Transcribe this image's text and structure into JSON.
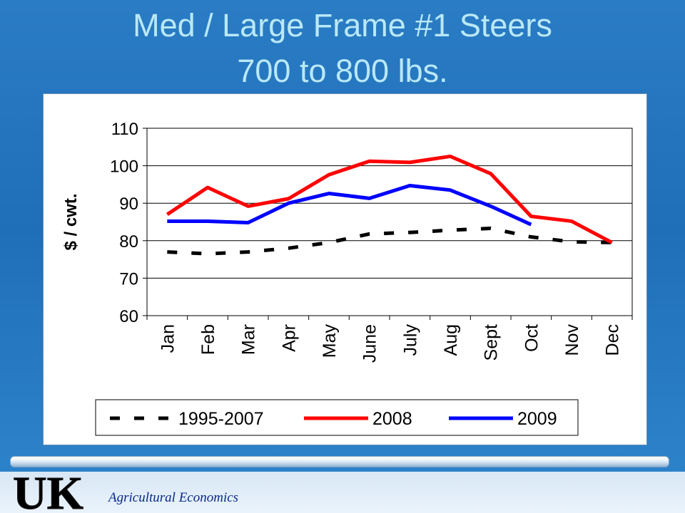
{
  "slide": {
    "title_line1": "Med / Large Frame #1 Steers",
    "title_line2": "700 to 800 lbs."
  },
  "footer": {
    "logo_text": "UK",
    "department": "Agricultural Economics"
  },
  "colors": {
    "title": "#b9e8f7",
    "series_1995_2007": "#000000",
    "series_2008": "#ff0000",
    "series_2009": "#0000ff"
  },
  "chart_data": {
    "type": "line",
    "title": "",
    "xlabel": "",
    "ylabel": "$ / cwt.",
    "ylim": [
      60,
      110
    ],
    "yticks": [
      60,
      70,
      80,
      90,
      100,
      110
    ],
    "grid": true,
    "legend_position": "bottom",
    "categories": [
      "Jan",
      "Feb",
      "Mar",
      "Apr",
      "May",
      "June",
      "July",
      "Aug",
      "Sept",
      "Oct",
      "Nov",
      "Dec"
    ],
    "series": [
      {
        "name": "1995-2007",
        "style": "dashed",
        "color": "#000000",
        "values": [
          77.0,
          76.5,
          77.0,
          78.0,
          79.5,
          81.8,
          82.2,
          82.8,
          83.3,
          81.0,
          79.7,
          79.5
        ]
      },
      {
        "name": "2008",
        "style": "solid",
        "color": "#ff0000",
        "values": [
          87.0,
          94.2,
          89.2,
          91.2,
          97.6,
          101.2,
          100.9,
          102.5,
          97.9,
          86.5,
          85.2,
          79.5
        ]
      },
      {
        "name": "2009",
        "style": "solid",
        "color": "#0000ff",
        "values": [
          85.2,
          85.2,
          84.8,
          90.0,
          92.6,
          91.3,
          94.7,
          93.5,
          89.2,
          84.3,
          null,
          null
        ]
      }
    ]
  }
}
